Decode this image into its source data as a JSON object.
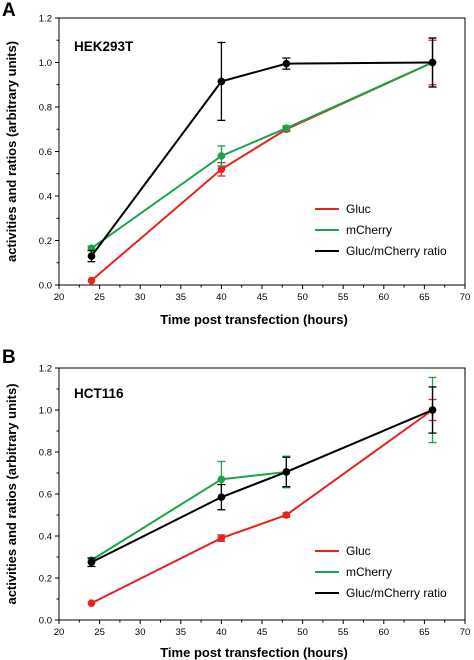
{
  "chart_data": [
    {
      "type": "line",
      "panel_label": "A",
      "inset_label": "HEK293T",
      "xlabel": "Time post transfection (hours)",
      "ylabel": "activities and ratios (arbitrary units)",
      "xlim": [
        20,
        70
      ],
      "ylim": [
        0,
        1.2
      ],
      "x_ticks": [
        20,
        25,
        30,
        35,
        40,
        45,
        50,
        55,
        60,
        65,
        70
      ],
      "x_tick_labels": [
        "20",
        "25",
        "30",
        "35",
        "40",
        "45",
        "50",
        "55",
        "60",
        "65",
        "70"
      ],
      "y_ticks": [
        0,
        0.2,
        0.4,
        0.6,
        0.8,
        1.0,
        1.2
      ],
      "y_tick_labels": [
        "0.0",
        "0.2",
        "0.4",
        "0.6",
        "0.8",
        "1.0",
        "1.2"
      ],
      "grid": false,
      "legend_position": "bottom-right",
      "series": [
        {
          "name": "Gluc",
          "color": "#e8231f",
          "x": [
            24,
            40,
            48,
            66
          ],
          "y": [
            0.02,
            0.52,
            0.7,
            1.0
          ],
          "err": [
            0.0,
            0.03,
            0.01,
            0.1
          ]
        },
        {
          "name": "mCherry",
          "color": "#1aa34a",
          "x": [
            24,
            40,
            48,
            66
          ],
          "y": [
            0.165,
            0.58,
            0.705,
            1.0
          ],
          "err": [
            0.01,
            0.045,
            0.01,
            0.11
          ]
        },
        {
          "name": "Gluc/mCherry ratio",
          "color": "#000000",
          "x": [
            24,
            40,
            48,
            66
          ],
          "y": [
            0.13,
            0.915,
            0.995,
            1.0
          ],
          "err": [
            0.025,
            0.175,
            0.025,
            0.11
          ]
        }
      ]
    },
    {
      "type": "line",
      "panel_label": "B",
      "inset_label": "HCT116",
      "xlabel": "Time post transfection (hours)",
      "ylabel": "activities and ratios (arbitrary units)",
      "xlim": [
        20,
        70
      ],
      "ylim": [
        0,
        1.2
      ],
      "x_ticks": [
        20,
        25,
        30,
        35,
        40,
        45,
        50,
        55,
        60,
        65,
        70
      ],
      "x_tick_labels": [
        "20",
        "25",
        "30",
        "35",
        "40",
        "45",
        "50",
        "55",
        "60",
        "65",
        "70"
      ],
      "y_ticks": [
        0,
        0.2,
        0.4,
        0.6,
        0.8,
        1.0,
        1.2
      ],
      "y_tick_labels": [
        "0.0",
        "0.2",
        "0.4",
        "0.6",
        "0.8",
        "1.0",
        "1.2"
      ],
      "grid": false,
      "legend_position": "bottom-right",
      "series": [
        {
          "name": "Gluc",
          "color": "#e8231f",
          "x": [
            24,
            40,
            48,
            66
          ],
          "y": [
            0.08,
            0.39,
            0.5,
            1.0
          ],
          "err": [
            0.0,
            0.015,
            0.01,
            0.05
          ]
        },
        {
          "name": "mCherry",
          "color": "#1aa34a",
          "x": [
            24,
            40,
            48,
            66
          ],
          "y": [
            0.285,
            0.67,
            0.705,
            1.0
          ],
          "err": [
            0.01,
            0.085,
            0.075,
            0.155
          ]
        },
        {
          "name": "Gluc/mCherry ratio",
          "color": "#000000",
          "x": [
            24,
            40,
            48,
            66
          ],
          "y": [
            0.275,
            0.585,
            0.705,
            1.0
          ],
          "err": [
            0.02,
            0.06,
            0.07,
            0.11
          ]
        }
      ]
    }
  ]
}
